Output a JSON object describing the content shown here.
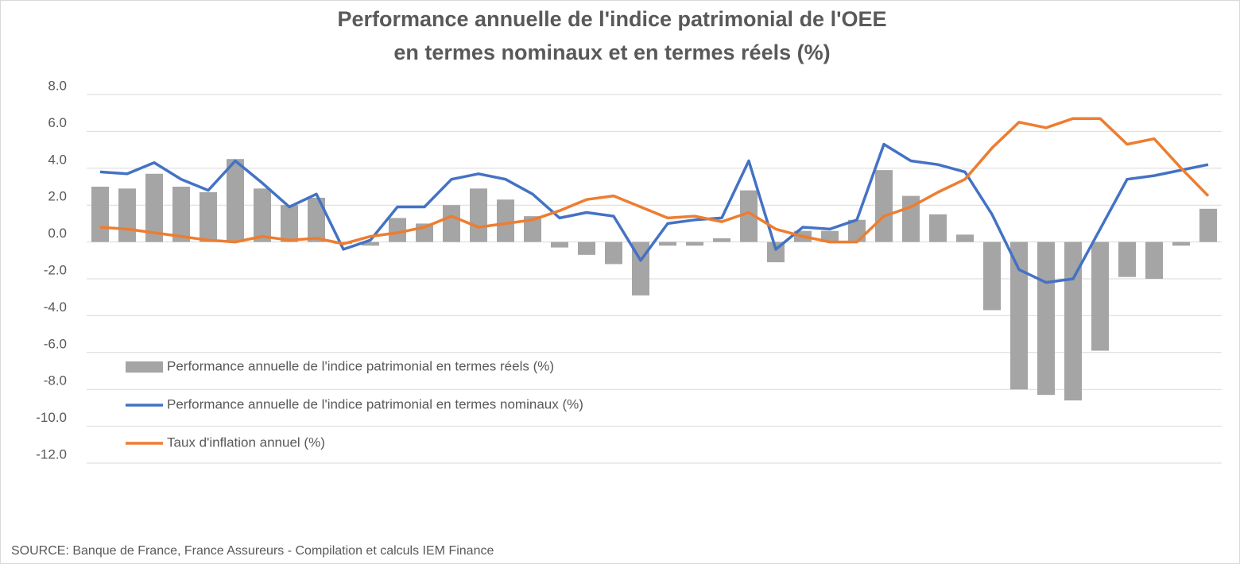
{
  "chart_data": {
    "type": "bar",
    "title": [
      "Performance annuelle de l'indice patrimonial de l'OEE",
      "en termes nominaux et en termes réels (%)"
    ],
    "source": "SOURCE: Banque de France, France Assureurs - Compilation et calculs IEM Finance",
    "categories": [
      null,
      null,
      null,
      null,
      null,
      null,
      null,
      null,
      null,
      null,
      null,
      null,
      null,
      null,
      null,
      null,
      null,
      null,
      null,
      null,
      null,
      null,
      null,
      null,
      null,
      null,
      null,
      null,
      null,
      null,
      null,
      null,
      null,
      null,
      null,
      null,
      null,
      null,
      null,
      null,
      null,
      null
    ],
    "series": [
      {
        "name": "Performance annuelle de l'indice patrimonial en termes réels (%)",
        "type": "bar",
        "color": "#a5a5a5",
        "values": [
          3.0,
          2.9,
          3.7,
          3.0,
          2.7,
          4.5,
          2.9,
          2.0,
          2.4,
          -0.1,
          -0.2,
          1.3,
          1.0,
          2.0,
          2.9,
          2.3,
          1.4,
          -0.3,
          -0.7,
          -1.2,
          -2.9,
          -0.2,
          -0.2,
          0.2,
          2.8,
          -1.1,
          0.6,
          0.6,
          1.2,
          3.9,
          2.5,
          1.5,
          0.4,
          -3.7,
          -8.0,
          -8.3,
          -8.6,
          -5.9,
          -1.9,
          -2.0,
          -0.2,
          1.8
        ]
      },
      {
        "name": "Performance annuelle de l'indice patrimonial en termes nominaux (%)",
        "type": "line",
        "color": "#4472c4",
        "values": [
          3.8,
          3.7,
          4.3,
          3.4,
          2.8,
          4.4,
          3.2,
          1.9,
          2.6,
          -0.4,
          0.1,
          1.9,
          1.9,
          3.4,
          3.7,
          3.4,
          2.6,
          1.3,
          1.6,
          1.4,
          -1.0,
          1.0,
          1.2,
          1.3,
          4.4,
          -0.4,
          0.8,
          0.7,
          1.2,
          5.3,
          4.4,
          4.2,
          3.8,
          1.5,
          -1.5,
          -2.2,
          -2.0,
          0.7,
          3.4,
          3.6,
          3.9,
          4.2
        ]
      },
      {
        "name": "Taux d'inflation annuel (%)",
        "type": "line",
        "color": "#ed7d31",
        "values": [
          0.8,
          0.7,
          0.5,
          0.3,
          0.1,
          0.0,
          0.3,
          0.1,
          0.2,
          -0.1,
          0.3,
          0.5,
          0.8,
          1.4,
          0.8,
          1.0,
          1.2,
          1.7,
          2.3,
          2.5,
          1.9,
          1.3,
          1.4,
          1.1,
          1.6,
          0.7,
          0.3,
          0.0,
          0.0,
          1.4,
          1.9,
          2.7,
          3.4,
          5.1,
          6.5,
          6.2,
          6.7,
          6.7,
          5.3,
          5.6,
          4.0,
          2.5
        ]
      }
    ],
    "ylim": [
      -12,
      8
    ],
    "yticks": [
      {
        "value": 8,
        "label": "8.0"
      },
      {
        "value": 6,
        "label": "6.0"
      },
      {
        "value": 4,
        "label": "4.0"
      },
      {
        "value": 2,
        "label": "2.0"
      },
      {
        "value": 0,
        "label": "0.0"
      },
      {
        "value": -2,
        "label": "-2.0"
      },
      {
        "value": -4,
        "label": "-4.0"
      },
      {
        "value": -6,
        "label": "-6.0"
      },
      {
        "value": -8,
        "label": "-8.0"
      },
      {
        "value": -10,
        "label": "-10.0"
      },
      {
        "value": -12,
        "label": "-12.0"
      }
    ],
    "grid": true,
    "legend": "lower left"
  }
}
